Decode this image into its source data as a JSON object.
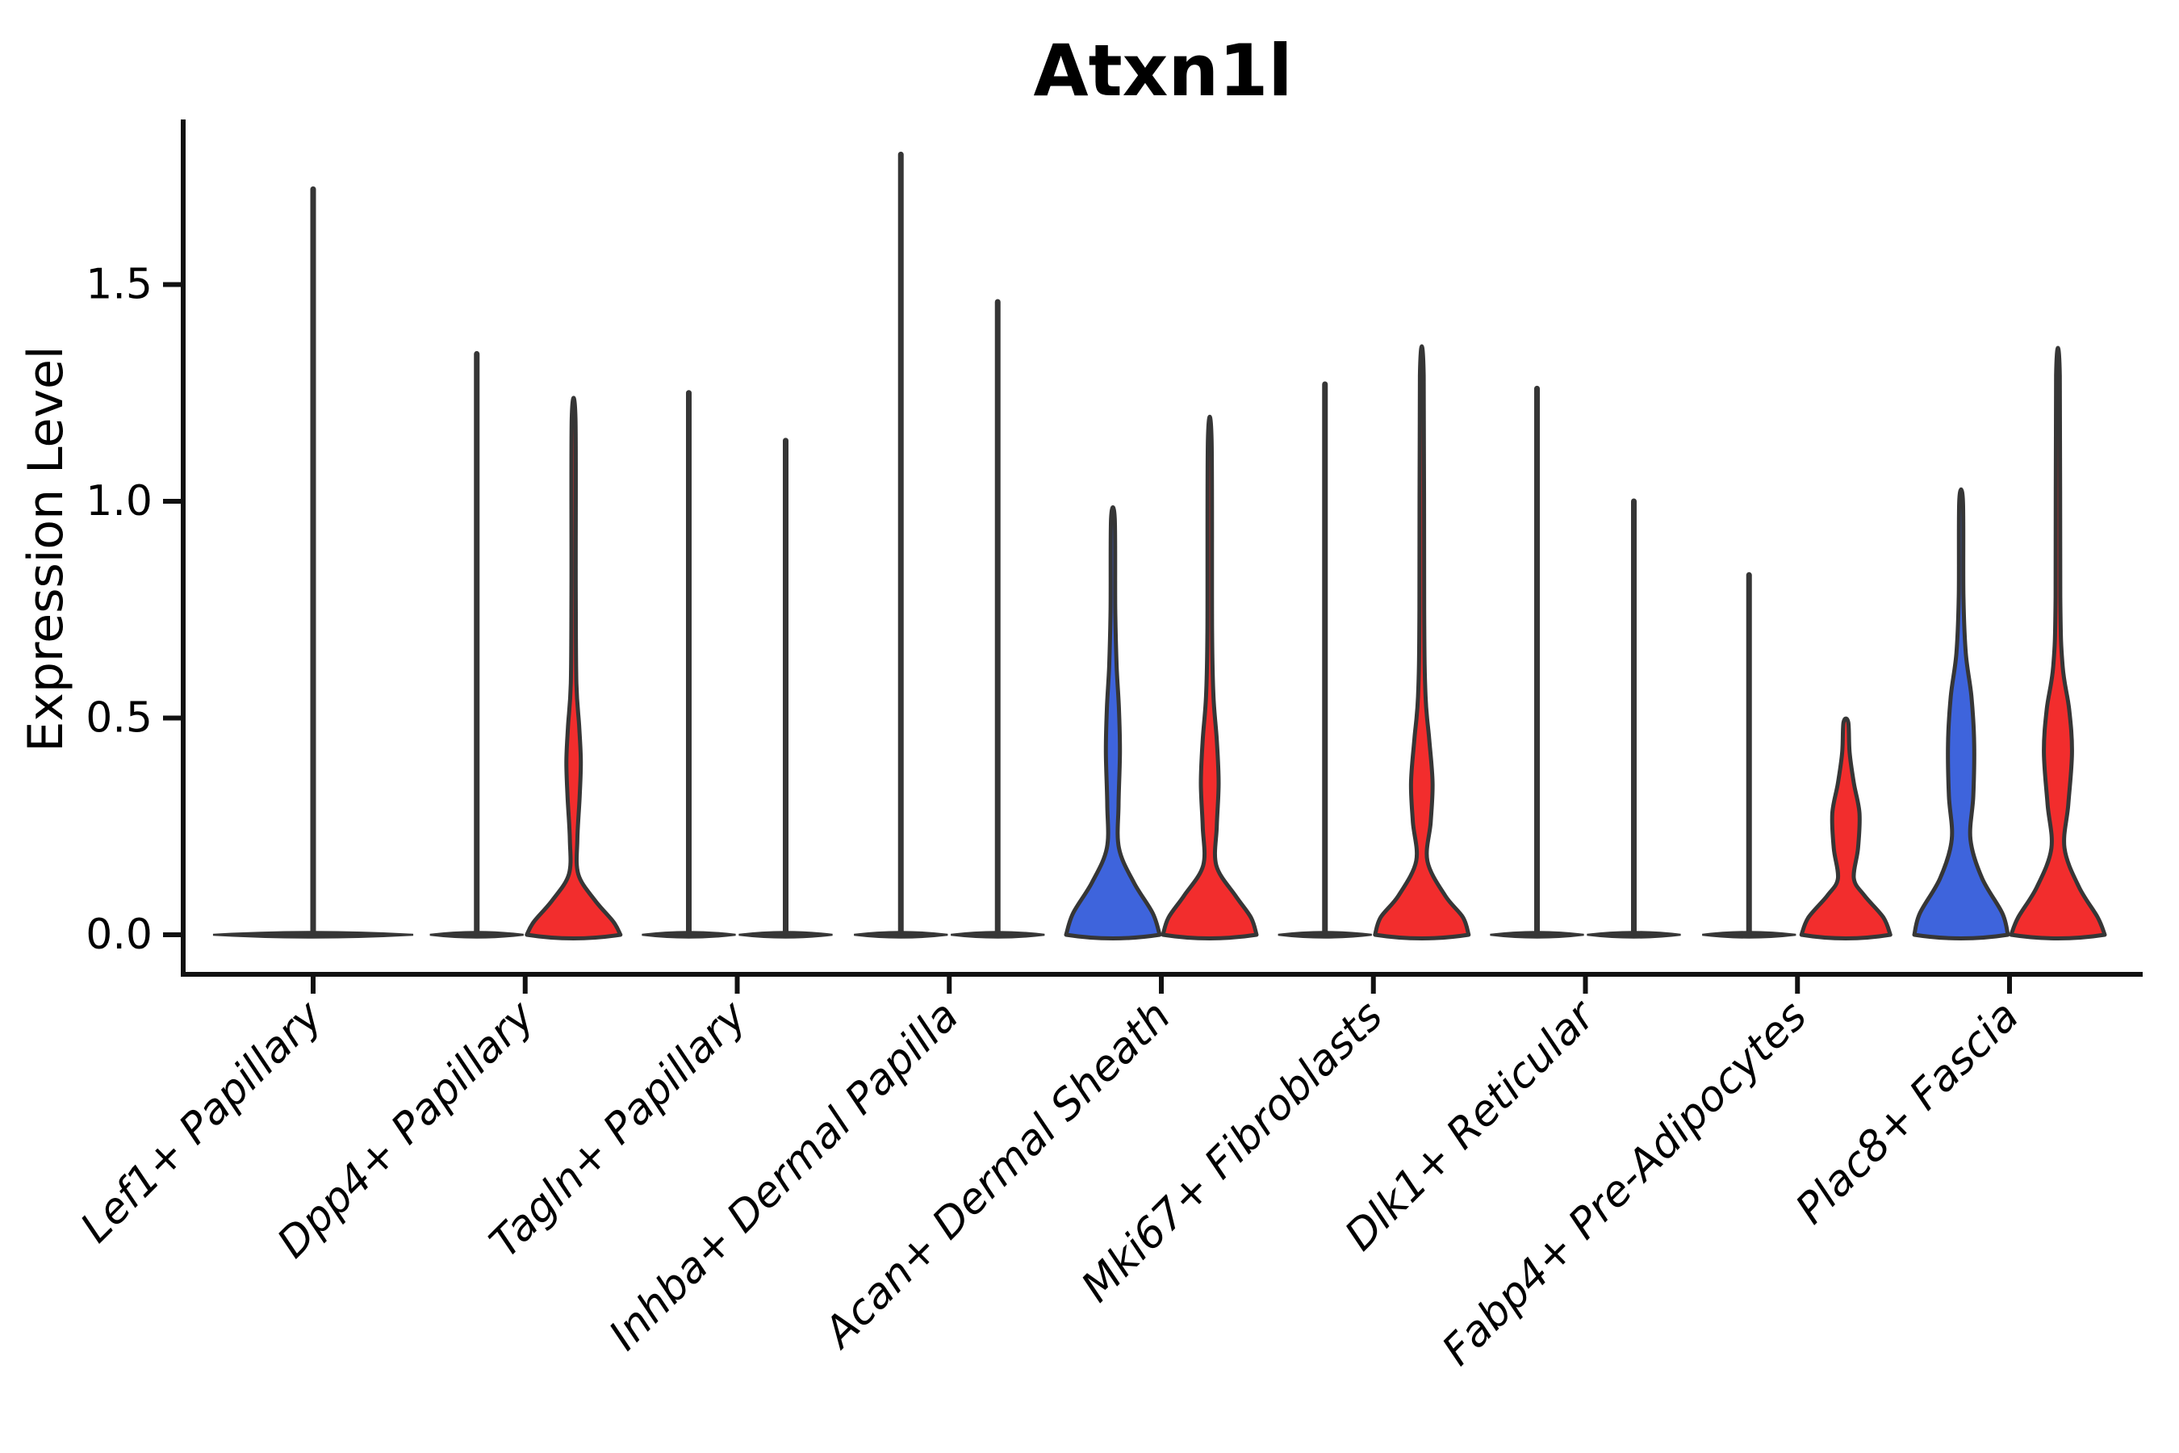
{
  "title": "Atxn1l",
  "y_axis": {
    "label": "Expression Level"
  },
  "chart_data": {
    "type": "violin",
    "title": "Atxn1l",
    "ylabel": "Expression Level",
    "xlabel": "",
    "ylim": [
      -0.09,
      1.88
    ],
    "yticks": [
      0.0,
      0.5,
      1.0,
      1.5
    ],
    "grid": false,
    "legend": "none",
    "categories": [
      "Lef1+ Papillary",
      "Dpp4+ Papillary",
      "Tagln+ Papillary",
      "Inhba+ Dermal Papilla",
      "Acan+ Dermal Sheath",
      "Mki67+ Fibroblasts",
      "Dlk1+ Reticular",
      "Fabp4+ Pre-Adipocytes",
      "Plac8+ Fascia"
    ],
    "style": {
      "outline": "#363636",
      "spine": "#111111",
      "blue": "#3E64DC",
      "red": "#F22D2D"
    },
    "groups": [
      {
        "category": "Lef1+ Papillary",
        "violins": [
          {
            "side": "full",
            "kind": "spike",
            "color": null,
            "max": 1.72
          }
        ]
      },
      {
        "category": "Dpp4+ Papillary",
        "violins": [
          {
            "side": "left",
            "kind": "spike",
            "color": null,
            "max": 1.34
          },
          {
            "side": "right",
            "kind": "density",
            "color": "#F22D2D",
            "max": 1.19,
            "profile": [
              [
                0,
                1.0
              ],
              [
                0.03,
                0.85
              ],
              [
                0.08,
                0.45
              ],
              [
                0.14,
                0.1
              ],
              [
                0.22,
                0.08
              ],
              [
                0.32,
                0.13
              ],
              [
                0.4,
                0.155
              ],
              [
                0.48,
                0.12
              ],
              [
                0.58,
                0.06
              ],
              [
                0.8,
                0.045
              ],
              [
                1.19,
                0.04
              ]
            ]
          }
        ]
      },
      {
        "category": "Tagln+ Papillary",
        "violins": [
          {
            "side": "left",
            "kind": "spike",
            "color": null,
            "max": 1.25
          },
          {
            "side": "right",
            "kind": "spike",
            "color": null,
            "max": 1.14
          }
        ]
      },
      {
        "category": "Inhba+ Dermal Papilla",
        "violins": [
          {
            "side": "left",
            "kind": "spike",
            "color": null,
            "max": 1.8
          },
          {
            "side": "right",
            "kind": "spike",
            "color": null,
            "max": 1.46
          }
        ]
      },
      {
        "category": "Acan+ Dermal Sheath",
        "violins": [
          {
            "side": "left",
            "kind": "density",
            "color": "#3E64DC",
            "max": 0.96,
            "profile": [
              [
                0,
                1.0
              ],
              [
                0.05,
                0.85
              ],
              [
                0.12,
                0.45
              ],
              [
                0.2,
                0.13
              ],
              [
                0.3,
                0.12
              ],
              [
                0.42,
                0.15
              ],
              [
                0.52,
                0.13
              ],
              [
                0.62,
                0.08
              ],
              [
                0.75,
                0.05
              ],
              [
                0.96,
                0.04
              ]
            ]
          },
          {
            "side": "right",
            "kind": "density",
            "color": "#F22D2D",
            "max": 1.14,
            "profile": [
              [
                0,
                1.0
              ],
              [
                0.04,
                0.88
              ],
              [
                0.09,
                0.55
              ],
              [
                0.16,
                0.14
              ],
              [
                0.25,
                0.15
              ],
              [
                0.35,
                0.19
              ],
              [
                0.45,
                0.15
              ],
              [
                0.55,
                0.08
              ],
              [
                0.7,
                0.05
              ],
              [
                1.14,
                0.04
              ]
            ]
          }
        ]
      },
      {
        "category": "Mki67+ Fibroblasts",
        "violins": [
          {
            "side": "left",
            "kind": "spike",
            "color": null,
            "max": 1.27
          },
          {
            "side": "right",
            "kind": "density",
            "color": "#F22D2D",
            "max": 1.29,
            "profile": [
              [
                0,
                1.0
              ],
              [
                0.04,
                0.88
              ],
              [
                0.09,
                0.5
              ],
              [
                0.17,
                0.12
              ],
              [
                0.26,
                0.19
              ],
              [
                0.35,
                0.23
              ],
              [
                0.45,
                0.16
              ],
              [
                0.55,
                0.08
              ],
              [
                0.75,
                0.05
              ],
              [
                1.29,
                0.04
              ]
            ]
          }
        ]
      },
      {
        "category": "Dlk1+ Reticular",
        "violins": [
          {
            "side": "left",
            "kind": "spike",
            "color": null,
            "max": 1.26
          },
          {
            "side": "right",
            "kind": "spike",
            "color": null,
            "max": 1.0
          }
        ]
      },
      {
        "category": "Fabp4+ Pre-Adipocytes",
        "violins": [
          {
            "side": "left",
            "kind": "spike",
            "color": null,
            "max": 0.83
          },
          {
            "side": "right",
            "kind": "density",
            "color": "#F22D2D",
            "max": 0.49,
            "profile": [
              [
                0,
                0.95
              ],
              [
                0.04,
                0.8
              ],
              [
                0.09,
                0.4
              ],
              [
                0.13,
                0.17
              ],
              [
                0.2,
                0.26
              ],
              [
                0.28,
                0.29
              ],
              [
                0.35,
                0.17
              ],
              [
                0.42,
                0.08
              ],
              [
                0.49,
                0.05
              ]
            ]
          }
        ]
      },
      {
        "category": "Plac8+ Fascia",
        "violins": [
          {
            "side": "left",
            "kind": "density",
            "color": "#3E64DC",
            "max": 1.0,
            "profile": [
              [
                0,
                1.0
              ],
              [
                0.05,
                0.88
              ],
              [
                0.13,
                0.45
              ],
              [
                0.22,
                0.2
              ],
              [
                0.32,
                0.26
              ],
              [
                0.44,
                0.28
              ],
              [
                0.55,
                0.22
              ],
              [
                0.65,
                0.1
              ],
              [
                0.78,
                0.05
              ],
              [
                1.0,
                0.04
              ]
            ]
          },
          {
            "side": "right",
            "kind": "density",
            "color": "#F22D2D",
            "max": 1.29,
            "profile": [
              [
                0,
                1.0
              ],
              [
                0.04,
                0.85
              ],
              [
                0.11,
                0.45
              ],
              [
                0.2,
                0.14
              ],
              [
                0.3,
                0.22
              ],
              [
                0.42,
                0.3
              ],
              [
                0.52,
                0.24
              ],
              [
                0.62,
                0.1
              ],
              [
                0.78,
                0.05
              ],
              [
                1.29,
                0.04
              ]
            ]
          }
        ]
      }
    ]
  }
}
